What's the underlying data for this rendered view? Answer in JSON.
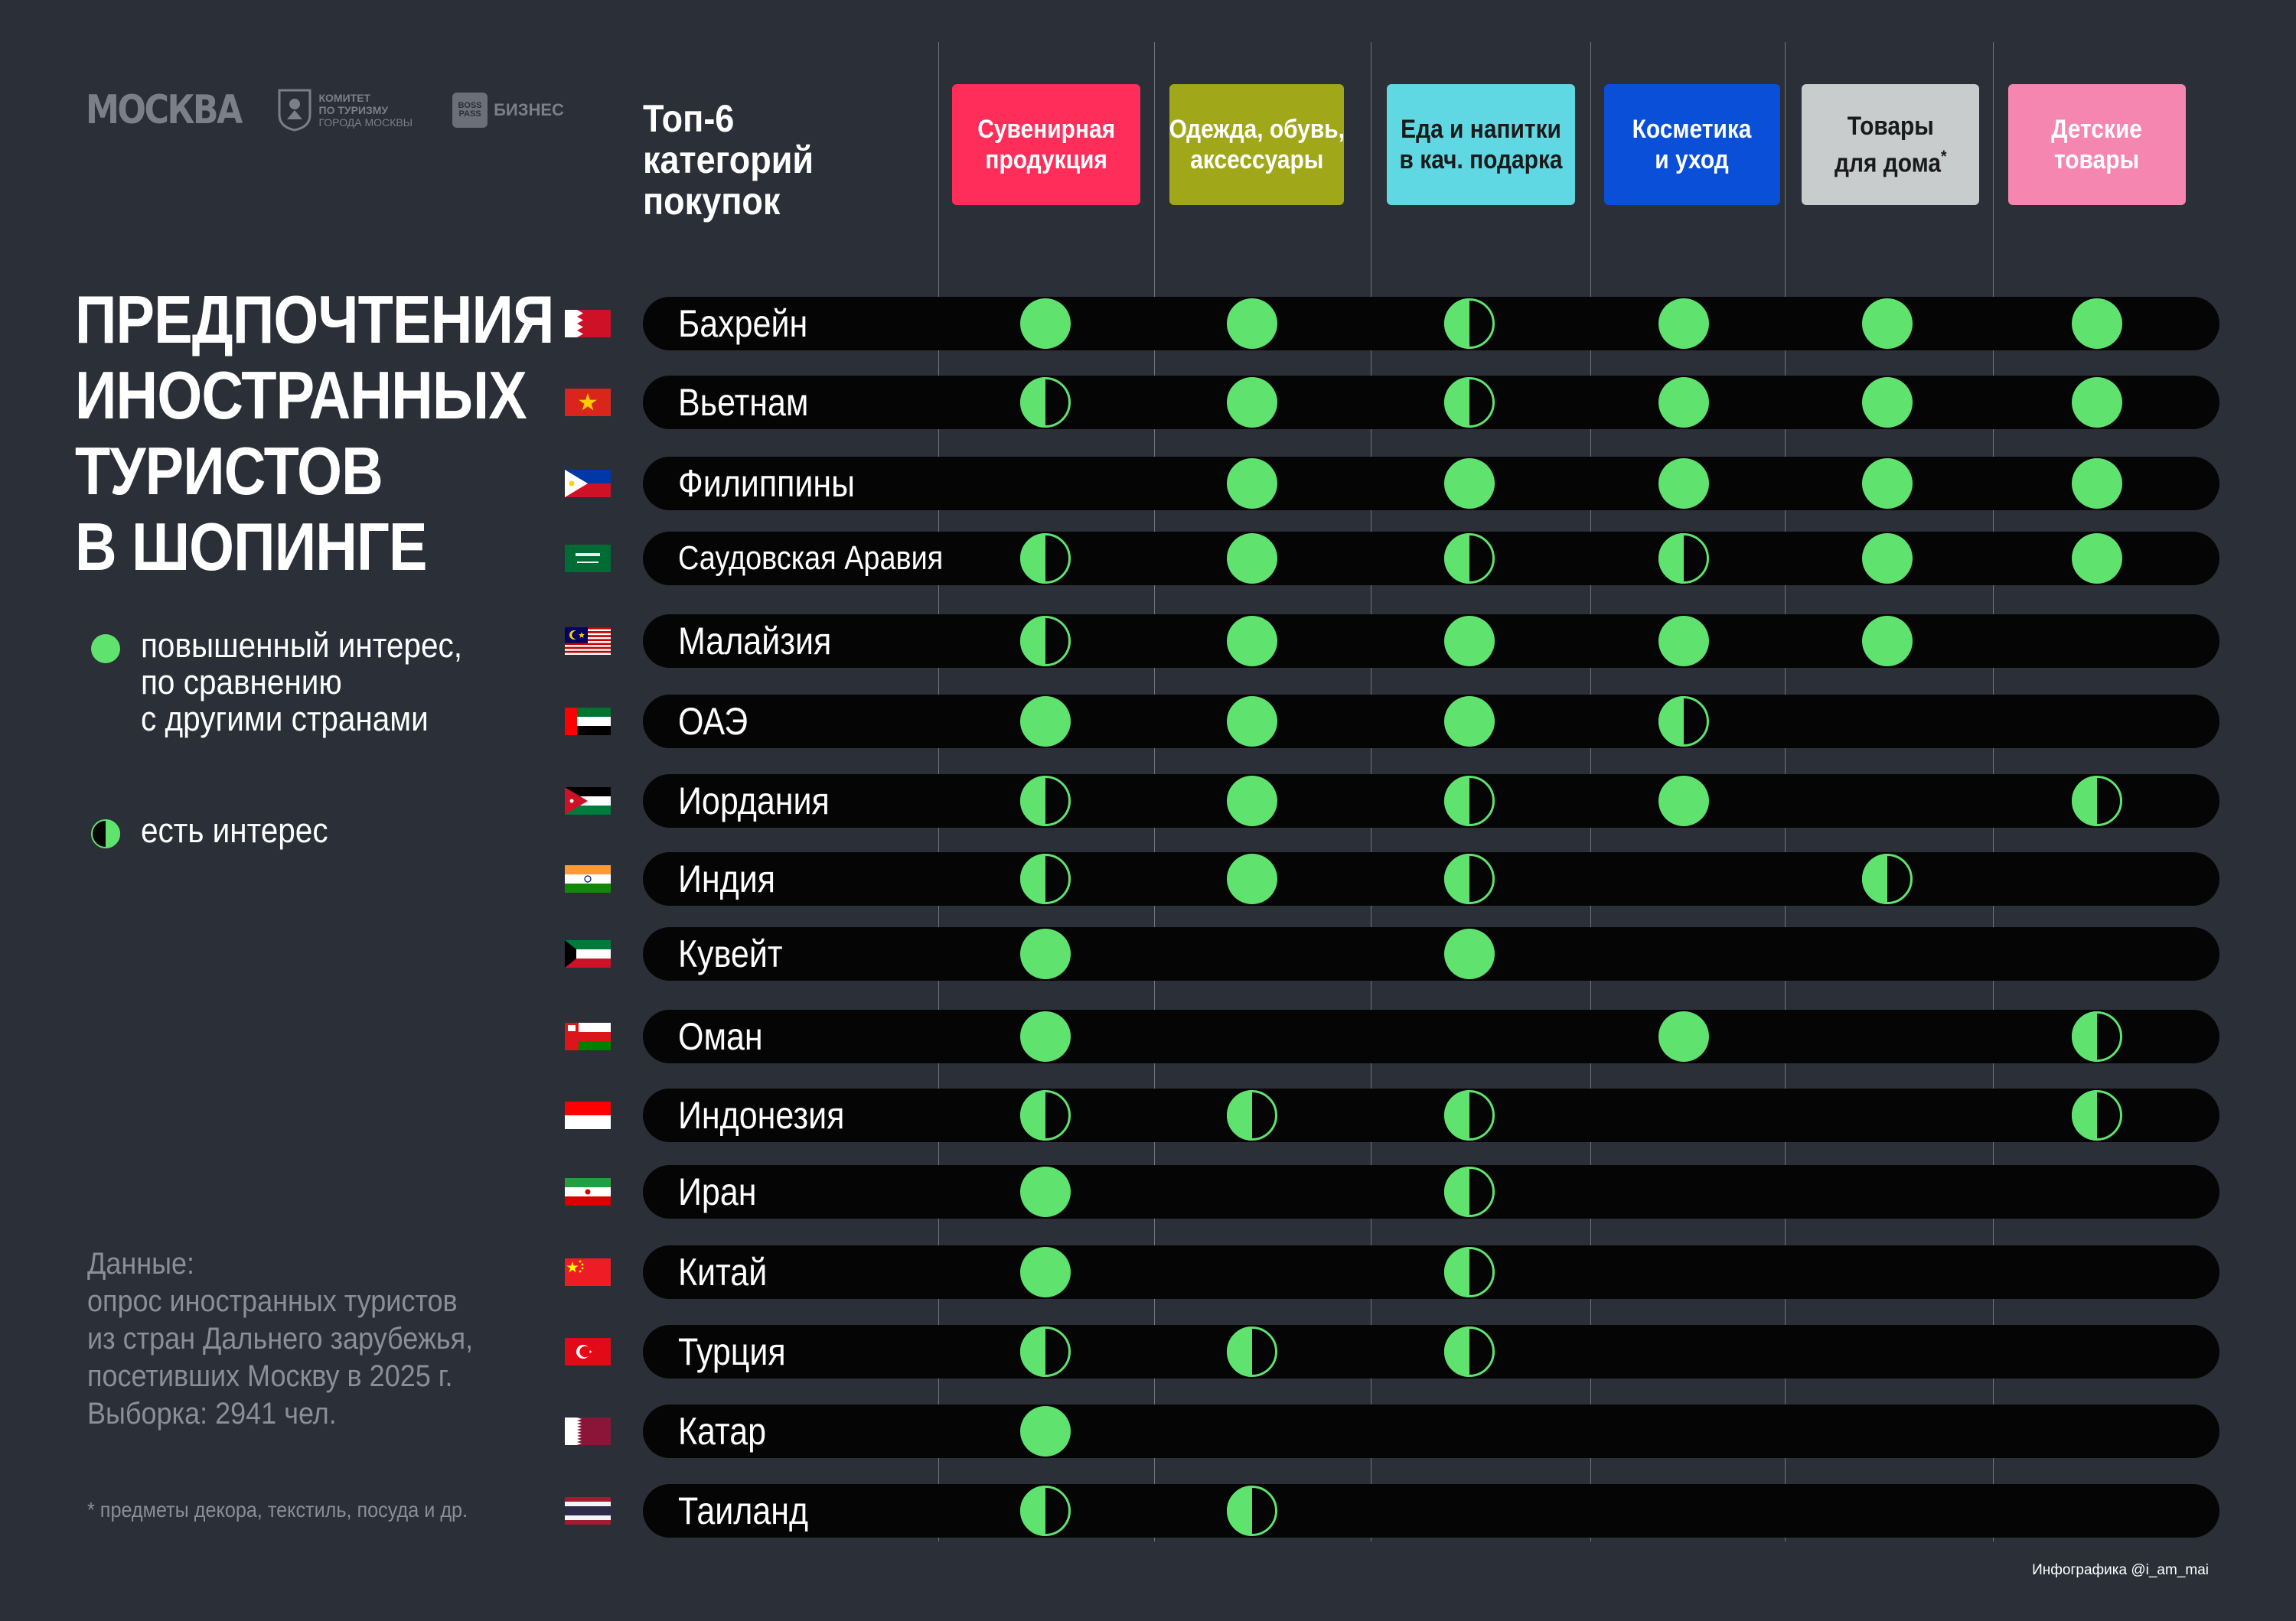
{
  "logos": {
    "moskva": "МОСКВА",
    "committee_lines": [
      "КОМИТЕТ",
      "ПО ТУРИЗМУ",
      "ГОРОДА МОСКВЫ"
    ],
    "business_box": "BOSS PASS",
    "business_text": "БИЗНЕС"
  },
  "title_lines": [
    "ПРЕДПОЧТЕНИЯ",
    "ИНОСТРАННЫХ",
    "ТУРИСТОВ",
    "В ШОПИНГЕ"
  ],
  "legend": {
    "high": "повышенный интерес,\nпо сравнению\nс другими странами",
    "some": "есть интерес"
  },
  "source": "Данные:\nопрос иностранных туристов\nиз стран Дальнего зарубежья,\nпосетивших Москву в 2025 г.\nВыборка: 2941 чел.",
  "footnote": "* предметы декора, текстиль, посуда и др.",
  "credit": "Инфографика @i_am_mai",
  "colors": {
    "background": "#2a2f38",
    "row": "#050505",
    "dot": "#5fe36e"
  },
  "chart_data": {
    "type": "table",
    "title": "Топ-6 категорий покупок",
    "legend": {
      "2": "повышенный интерес, по сравнению с другими странами",
      "1": "есть интерес",
      "0": ""
    },
    "categories": [
      {
        "label": "Сувенирная продукция",
        "lines": [
          "Сувенирная",
          "продукция"
        ],
        "color": "#ff2d5a",
        "text_color": "#ffffff"
      },
      {
        "label": "Одежда, обувь, аксессуары",
        "lines": [
          "Одежда, обувь,",
          "аксессуары"
        ],
        "color": "#a0a81a",
        "text_color": "#ffffff"
      },
      {
        "label": "Еда и напитки в кач. подарка",
        "lines": [
          "Еда и напитки",
          "в кач. подарка"
        ],
        "color": "#5fd8e4",
        "text_color": "#1a1a1a"
      },
      {
        "label": "Косметика и уход",
        "lines": [
          "Косметика",
          "и уход"
        ],
        "color": "#0a4fd8",
        "text_color": "#ffffff"
      },
      {
        "label": "Товары для дома*",
        "lines": [
          "Товары",
          "для дома*"
        ],
        "color": "#c8cccc",
        "text_color": "#1a1a1a"
      },
      {
        "label": "Детские товары",
        "lines": [
          "Детские",
          "товары"
        ],
        "color": "#f586b0",
        "text_color": "#ffffff"
      }
    ],
    "rows": [
      {
        "country": "Бахрейн",
        "flag": "bahrain",
        "values": [
          2,
          2,
          1,
          2,
          2,
          2
        ]
      },
      {
        "country": "Вьетнам",
        "flag": "vietnam",
        "values": [
          1,
          2,
          1,
          2,
          2,
          2
        ]
      },
      {
        "country": "Филиппины",
        "flag": "philippines",
        "values": [
          0,
          2,
          2,
          2,
          2,
          2
        ]
      },
      {
        "country": "Саудовская Аравия",
        "flag": "saudi",
        "values": [
          1,
          2,
          1,
          1,
          2,
          2
        ]
      },
      {
        "country": "Малайзия",
        "flag": "malaysia",
        "values": [
          1,
          2,
          2,
          2,
          2,
          0
        ]
      },
      {
        "country": "ОАЭ",
        "flag": "uae",
        "values": [
          2,
          2,
          2,
          1,
          0,
          0
        ]
      },
      {
        "country": "Иордания",
        "flag": "jordan",
        "values": [
          1,
          2,
          1,
          2,
          0,
          1
        ]
      },
      {
        "country": "Индия",
        "flag": "india",
        "values": [
          1,
          2,
          1,
          0,
          1,
          0
        ]
      },
      {
        "country": "Кувейт",
        "flag": "kuwait",
        "values": [
          2,
          0,
          2,
          0,
          0,
          0
        ]
      },
      {
        "country": "Оман",
        "flag": "oman",
        "values": [
          2,
          0,
          0,
          2,
          0,
          1
        ]
      },
      {
        "country": "Индонезия",
        "flag": "indonesia",
        "values": [
          1,
          1,
          1,
          0,
          0,
          1
        ]
      },
      {
        "country": "Иран",
        "flag": "iran",
        "values": [
          2,
          0,
          1,
          0,
          0,
          0
        ]
      },
      {
        "country": "Китай",
        "flag": "china",
        "values": [
          2,
          0,
          1,
          0,
          0,
          0
        ]
      },
      {
        "country": "Турция",
        "flag": "turkey",
        "values": [
          1,
          1,
          1,
          0,
          0,
          0
        ]
      },
      {
        "country": "Катар",
        "flag": "qatar",
        "values": [
          2,
          0,
          0,
          0,
          0,
          0
        ]
      },
      {
        "country": "Таиланд",
        "flag": "thailand",
        "values": [
          1,
          1,
          0,
          0,
          0,
          0
        ]
      }
    ]
  }
}
